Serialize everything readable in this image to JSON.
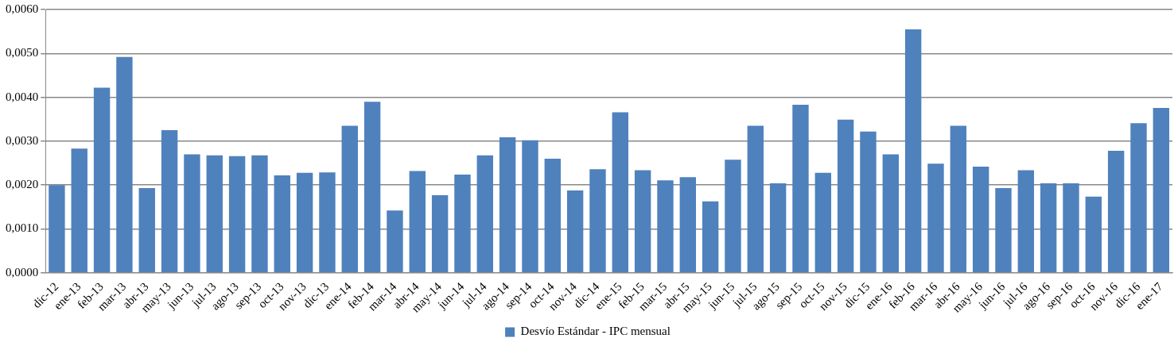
{
  "chart_data": {
    "type": "bar",
    "categories": [
      "dic-12",
      "ene-13",
      "feb-13",
      "mar-13",
      "abr-13",
      "may-13",
      "jun-13",
      "jul-13",
      "ago-13",
      "sep-13",
      "oct-13",
      "nov-13",
      "dic-13",
      "ene-14",
      "feb-14",
      "mar-14",
      "abr-14",
      "may-14",
      "jun-14",
      "jul-14",
      "ago-14",
      "sep-14",
      "oct-14",
      "nov-14",
      "dic-14",
      "ene-15",
      "feb-15",
      "mar-15",
      "abr-15",
      "may-15",
      "jun-15",
      "jul-15",
      "ago-15",
      "sep-15",
      "oct-15",
      "nov-15",
      "dic-15",
      "ene-16",
      "feb-16",
      "mar-16",
      "abr-16",
      "may-16",
      "jun-16",
      "jul-16",
      "ago-16",
      "sep-16",
      "oct-16",
      "nov-16",
      "dic-16",
      "ene-17"
    ],
    "series": [
      {
        "name": "Desvío Estándar - IPC mensual",
        "color": "#4f81bd",
        "values": [
          0.002,
          0.00283,
          0.00422,
          0.00492,
          0.00193,
          0.00325,
          0.0027,
          0.00268,
          0.00266,
          0.00268,
          0.00222,
          0.00228,
          0.00229,
          0.00335,
          0.0039,
          0.00142,
          0.00232,
          0.00177,
          0.00224,
          0.00268,
          0.00309,
          0.00302,
          0.0026,
          0.00188,
          0.00236,
          0.00366,
          0.00234,
          0.00211,
          0.00218,
          0.00163,
          0.00258,
          0.00335,
          0.00204,
          0.00383,
          0.00228,
          0.00349,
          0.00322,
          0.0027,
          0.00555,
          0.00249,
          0.00335,
          0.00242,
          0.00193,
          0.00234,
          0.00204,
          0.00204,
          0.00174,
          0.00278,
          0.00341,
          0.00376
        ]
      }
    ],
    "ylim": [
      0,
      0.006
    ],
    "yticks": [
      {
        "value": 0,
        "label": "0,0000"
      },
      {
        "value": 0.001,
        "label": "0,0010"
      },
      {
        "value": 0.002,
        "label": "0,0020"
      },
      {
        "value": 0.003,
        "label": "0,0030"
      },
      {
        "value": 0.004,
        "label": "0,0040"
      },
      {
        "value": 0.005,
        "label": "0,0050"
      },
      {
        "value": 0.006,
        "label": "0,0060"
      }
    ],
    "grid": "y",
    "legend": "bottom"
  }
}
